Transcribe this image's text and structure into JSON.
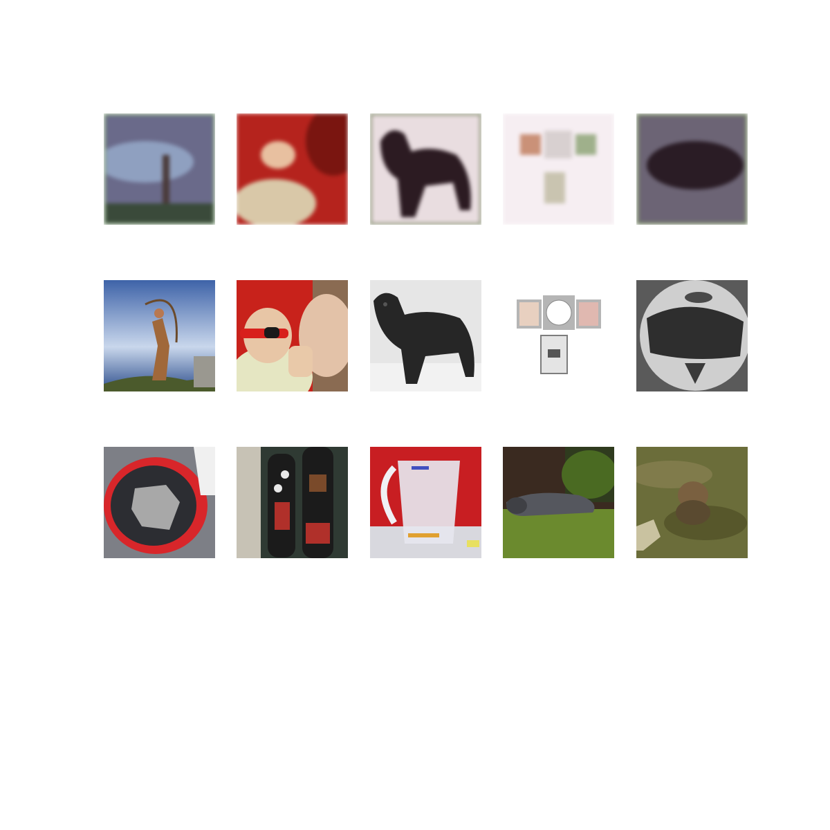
{
  "figure": {
    "rows": [
      {
        "name": "reconstruction-row",
        "tiles": [
          {
            "name": "reconstruction-archer",
            "colors": [
              "#6a6a8a",
              "#8fa0c0",
              "#3a4a3a"
            ]
          },
          {
            "name": "reconstruction-baby",
            "colors": [
              "#b5231d",
              "#d9c8a8",
              "#7a1510"
            ]
          },
          {
            "name": "reconstruction-dog",
            "colors": [
              "#e9dde0",
              "#2c1b22",
              "#6e7a55"
            ]
          },
          {
            "name": "reconstruction-clock",
            "colors": [
              "#f6eef2",
              "#b86a45",
              "#8aa070"
            ]
          },
          {
            "name": "reconstruction-helmet",
            "colors": [
              "#6c6475",
              "#2a1c25",
              "#7b8a6c"
            ]
          }
        ]
      },
      {
        "name": "original-row",
        "tiles": [
          {
            "name": "photo-archer",
            "colors": [
              "#3e63a8",
              "#c9d7ec",
              "#4b5a2c"
            ]
          },
          {
            "name": "photo-baby-sunglasses",
            "colors": [
              "#c8221b",
              "#e5e6c2",
              "#6a3b2a"
            ]
          },
          {
            "name": "photo-black-dog",
            "colors": [
              "#e6e6e6",
              "#262626",
              "#bdbdbd"
            ]
          },
          {
            "name": "photo-clock-frame",
            "colors": [
              "#ffffff",
              "#b5b5b5",
              "#7d7d7d"
            ]
          },
          {
            "name": "photo-motorcycle-helmet",
            "colors": [
              "#8e8e8e",
              "#cfcfcf",
              "#2e2e2e"
            ]
          }
        ]
      },
      {
        "name": "photo-row",
        "tiles": [
          {
            "name": "photo-helmet-interior",
            "colors": [
              "#7d7f86",
              "#d8262a",
              "#2c2d32"
            ]
          },
          {
            "name": "photo-gondolas",
            "colors": [
              "#2f3a33",
              "#c7c2b5",
              "#b0302a"
            ]
          },
          {
            "name": "photo-measuring-jug",
            "colors": [
              "#c81e22",
              "#e6e6ee",
              "#d8d8de"
            ]
          },
          {
            "name": "photo-sleeping-dog",
            "colors": [
              "#6b8a2e",
              "#55575e",
              "#2f3b1e"
            ]
          },
          {
            "name": "photo-otter",
            "colors": [
              "#6b6d3a",
              "#8e8556",
              "#4a4a22"
            ]
          }
        ]
      }
    ]
  }
}
